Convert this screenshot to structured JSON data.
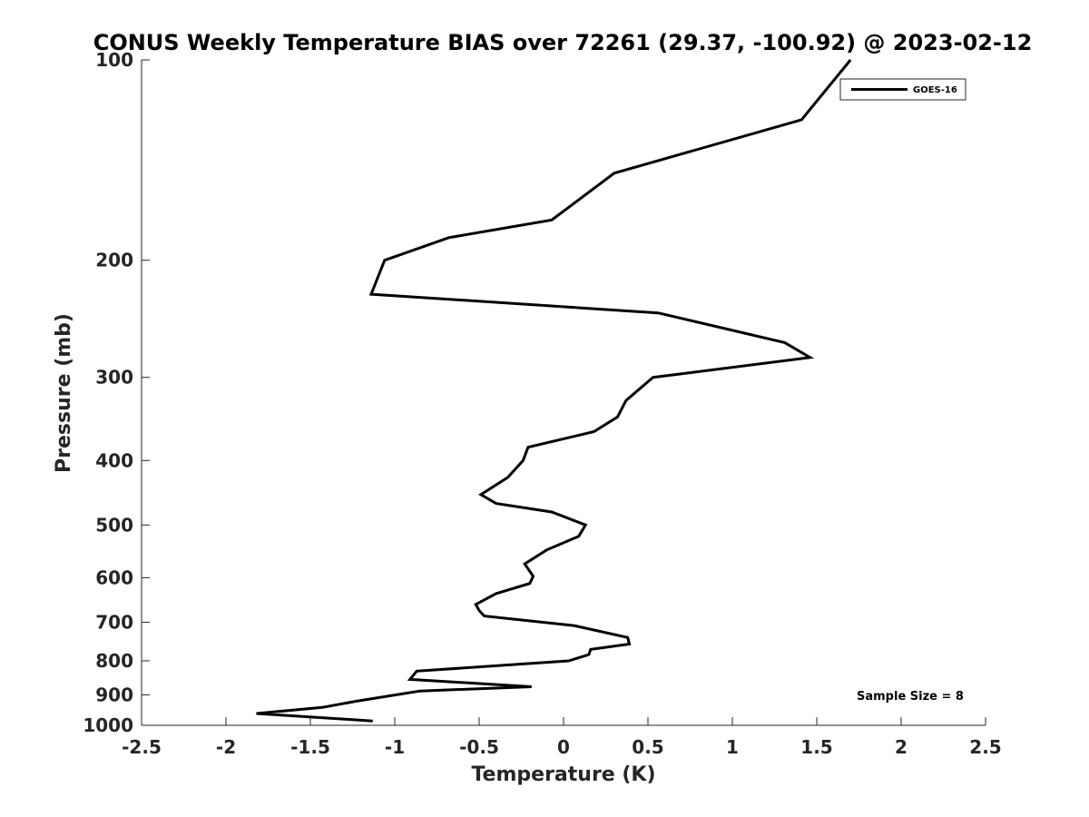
{
  "chart_data": {
    "type": "line",
    "title": "CONUS Weekly Temperature BIAS over 72261 (29.37, -100.92) @ 2023-02-12",
    "xlabel": "Temperature (K)",
    "ylabel": "Pressure (mb)",
    "xlim": [
      -2.5,
      2.5
    ],
    "ylim": [
      1000,
      100
    ],
    "y_scale": "log",
    "x_ticks": [
      -2.5,
      -2,
      -1.5,
      -1,
      -0.5,
      0,
      0.5,
      1,
      1.5,
      2,
      2.5
    ],
    "x_tick_labels": [
      "-2.5",
      "-2",
      "-1.5",
      "-1",
      "-0.5",
      "0",
      "0.5",
      "1",
      "1.5",
      "2",
      "2.5"
    ],
    "y_ticks": [
      100,
      200,
      300,
      400,
      500,
      600,
      700,
      800,
      900,
      1000
    ],
    "y_tick_labels": [
      "100",
      "200",
      "300",
      "400",
      "500",
      "600",
      "700",
      "800",
      "900",
      "1000"
    ],
    "grid": false,
    "legend_position": "top-right",
    "annotation": "Sample Size = 8",
    "series": [
      {
        "name": "GOES-16",
        "color": "#000000",
        "x": [
          1.7,
          1.41,
          0.3,
          -0.07,
          -0.68,
          -1.06,
          -1.14,
          0.56,
          1.31,
          1.46,
          0.53,
          0.37,
          0.32,
          0.18,
          -0.21,
          -0.24,
          -0.33,
          -0.49,
          -0.4,
          -0.07,
          0.13,
          0.09,
          -0.1,
          -0.23,
          -0.18,
          -0.2,
          -0.4,
          -0.52,
          -0.5,
          -0.47,
          0.06,
          0.38,
          0.39,
          0.16,
          0.15,
          0.03,
          -0.87,
          -0.91,
          -0.19,
          -0.85,
          -1.23,
          -1.43,
          -1.82,
          -1.13
        ],
        "y": [
          100,
          123,
          148,
          174,
          185,
          200,
          225,
          240,
          266,
          280,
          300,
          325,
          344,
          362,
          382,
          400,
          424,
          450,
          464,
          478,
          500,
          520,
          545,
          572,
          597,
          612,
          634,
          658,
          672,
          685,
          708,
          738,
          755,
          769,
          783,
          800,
          829,
          853,
          875,
          888,
          920,
          940,
          960,
          985
        ]
      }
    ]
  }
}
